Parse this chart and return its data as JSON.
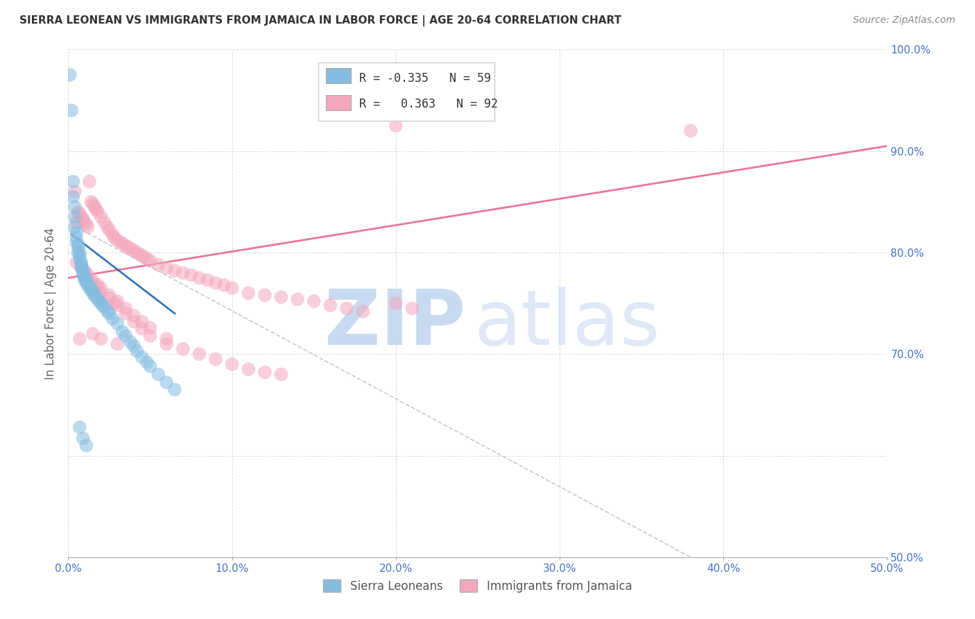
{
  "title": "SIERRA LEONEAN VS IMMIGRANTS FROM JAMAICA IN LABOR FORCE | AGE 20-64 CORRELATION CHART",
  "source": "Source: ZipAtlas.com",
  "ylabel": "In Labor Force | Age 20-64",
  "xlim": [
    0.0,
    0.5
  ],
  "ylim": [
    0.5,
    1.0
  ],
  "xticks": [
    0.0,
    0.1,
    0.2,
    0.3,
    0.4,
    0.5
  ],
  "yticks": [
    0.5,
    0.6,
    0.7,
    0.8,
    0.9,
    1.0
  ],
  "xtick_labels": [
    "0.0%",
    "10.0%",
    "20.0%",
    "30.0%",
    "40.0%",
    "50.0%"
  ],
  "ytick_labels_right": [
    "50.0%",
    "",
    "70.0%",
    "80.0%",
    "90.0%",
    "100.0%"
  ],
  "blue_color": "#85bde0",
  "pink_color": "#f4a7bc",
  "blue_line_color": "#2166ac",
  "pink_line_color": "#e8678a",
  "axis_label_color": "#4472c4",
  "grid_color": "#cccccc",
  "legend_R_blue": "-0.335",
  "legend_N_blue": "59",
  "legend_R_pink": "0.363",
  "legend_N_pink": "92",
  "legend_label_blue": "Sierra Leoneans",
  "legend_label_pink": "Immigrants from Jamaica",
  "blue_scatter_x": [
    0.001,
    0.002,
    0.003,
    0.003,
    0.004,
    0.004,
    0.004,
    0.005,
    0.005,
    0.005,
    0.006,
    0.006,
    0.006,
    0.007,
    0.007,
    0.007,
    0.008,
    0.008,
    0.008,
    0.009,
    0.009,
    0.009,
    0.01,
    0.01,
    0.01,
    0.011,
    0.011,
    0.012,
    0.012,
    0.013,
    0.013,
    0.014,
    0.015,
    0.015,
    0.016,
    0.017,
    0.018,
    0.019,
    0.02,
    0.021,
    0.022,
    0.024,
    0.025,
    0.027,
    0.03,
    0.033,
    0.035,
    0.038,
    0.04,
    0.042,
    0.045,
    0.048,
    0.05,
    0.055,
    0.06,
    0.065,
    0.007,
    0.009,
    0.011
  ],
  "blue_scatter_y": [
    0.975,
    0.94,
    0.87,
    0.855,
    0.845,
    0.835,
    0.825,
    0.82,
    0.815,
    0.81,
    0.808,
    0.805,
    0.8,
    0.8,
    0.797,
    0.793,
    0.79,
    0.788,
    0.785,
    0.783,
    0.78,
    0.778,
    0.777,
    0.775,
    0.773,
    0.772,
    0.77,
    0.769,
    0.768,
    0.767,
    0.765,
    0.763,
    0.762,
    0.76,
    0.758,
    0.756,
    0.754,
    0.752,
    0.75,
    0.748,
    0.746,
    0.742,
    0.74,
    0.735,
    0.73,
    0.722,
    0.718,
    0.712,
    0.708,
    0.703,
    0.697,
    0.692,
    0.688,
    0.68,
    0.672,
    0.665,
    0.628,
    0.617,
    0.61
  ],
  "pink_scatter_x": [
    0.004,
    0.005,
    0.006,
    0.007,
    0.008,
    0.009,
    0.01,
    0.011,
    0.012,
    0.013,
    0.014,
    0.015,
    0.016,
    0.017,
    0.018,
    0.02,
    0.022,
    0.024,
    0.025,
    0.027,
    0.028,
    0.03,
    0.032,
    0.034,
    0.036,
    0.038,
    0.04,
    0.042,
    0.044,
    0.046,
    0.048,
    0.05,
    0.055,
    0.06,
    0.065,
    0.07,
    0.075,
    0.08,
    0.085,
    0.09,
    0.095,
    0.1,
    0.11,
    0.12,
    0.13,
    0.14,
    0.15,
    0.16,
    0.17,
    0.18,
    0.01,
    0.012,
    0.015,
    0.018,
    0.02,
    0.025,
    0.028,
    0.03,
    0.035,
    0.04,
    0.045,
    0.05,
    0.06,
    0.07,
    0.08,
    0.09,
    0.1,
    0.11,
    0.12,
    0.13,
    0.008,
    0.01,
    0.012,
    0.015,
    0.018,
    0.02,
    0.025,
    0.03,
    0.035,
    0.04,
    0.045,
    0.05,
    0.06,
    0.2,
    0.21,
    0.015,
    0.02,
    0.03,
    0.2,
    0.38,
    0.005,
    0.007
  ],
  "pink_scatter_y": [
    0.86,
    0.83,
    0.84,
    0.838,
    0.835,
    0.833,
    0.83,
    0.828,
    0.825,
    0.87,
    0.85,
    0.848,
    0.845,
    0.843,
    0.84,
    0.835,
    0.83,
    0.825,
    0.822,
    0.818,
    0.815,
    0.812,
    0.81,
    0.808,
    0.806,
    0.804,
    0.802,
    0.8,
    0.798,
    0.796,
    0.794,
    0.792,
    0.788,
    0.785,
    0.782,
    0.78,
    0.778,
    0.775,
    0.773,
    0.77,
    0.768,
    0.765,
    0.76,
    0.758,
    0.756,
    0.754,
    0.752,
    0.748,
    0.745,
    0.742,
    0.78,
    0.775,
    0.77,
    0.765,
    0.76,
    0.755,
    0.75,
    0.748,
    0.74,
    0.732,
    0.725,
    0.718,
    0.71,
    0.705,
    0.7,
    0.695,
    0.69,
    0.685,
    0.682,
    0.68,
    0.785,
    0.782,
    0.778,
    0.772,
    0.768,
    0.765,
    0.758,
    0.752,
    0.745,
    0.738,
    0.732,
    0.726,
    0.715,
    0.75,
    0.745,
    0.72,
    0.715,
    0.71,
    0.925,
    0.92,
    0.79,
    0.715
  ],
  "blue_line_x": [
    0.002,
    0.065
  ],
  "blue_line_y": [
    0.818,
    0.74
  ],
  "pink_line_x": [
    0.0,
    0.5
  ],
  "pink_line_y": [
    0.775,
    0.905
  ],
  "diag_line_x": [
    0.005,
    0.38
  ],
  "diag_line_y": [
    0.825,
    0.5
  ]
}
